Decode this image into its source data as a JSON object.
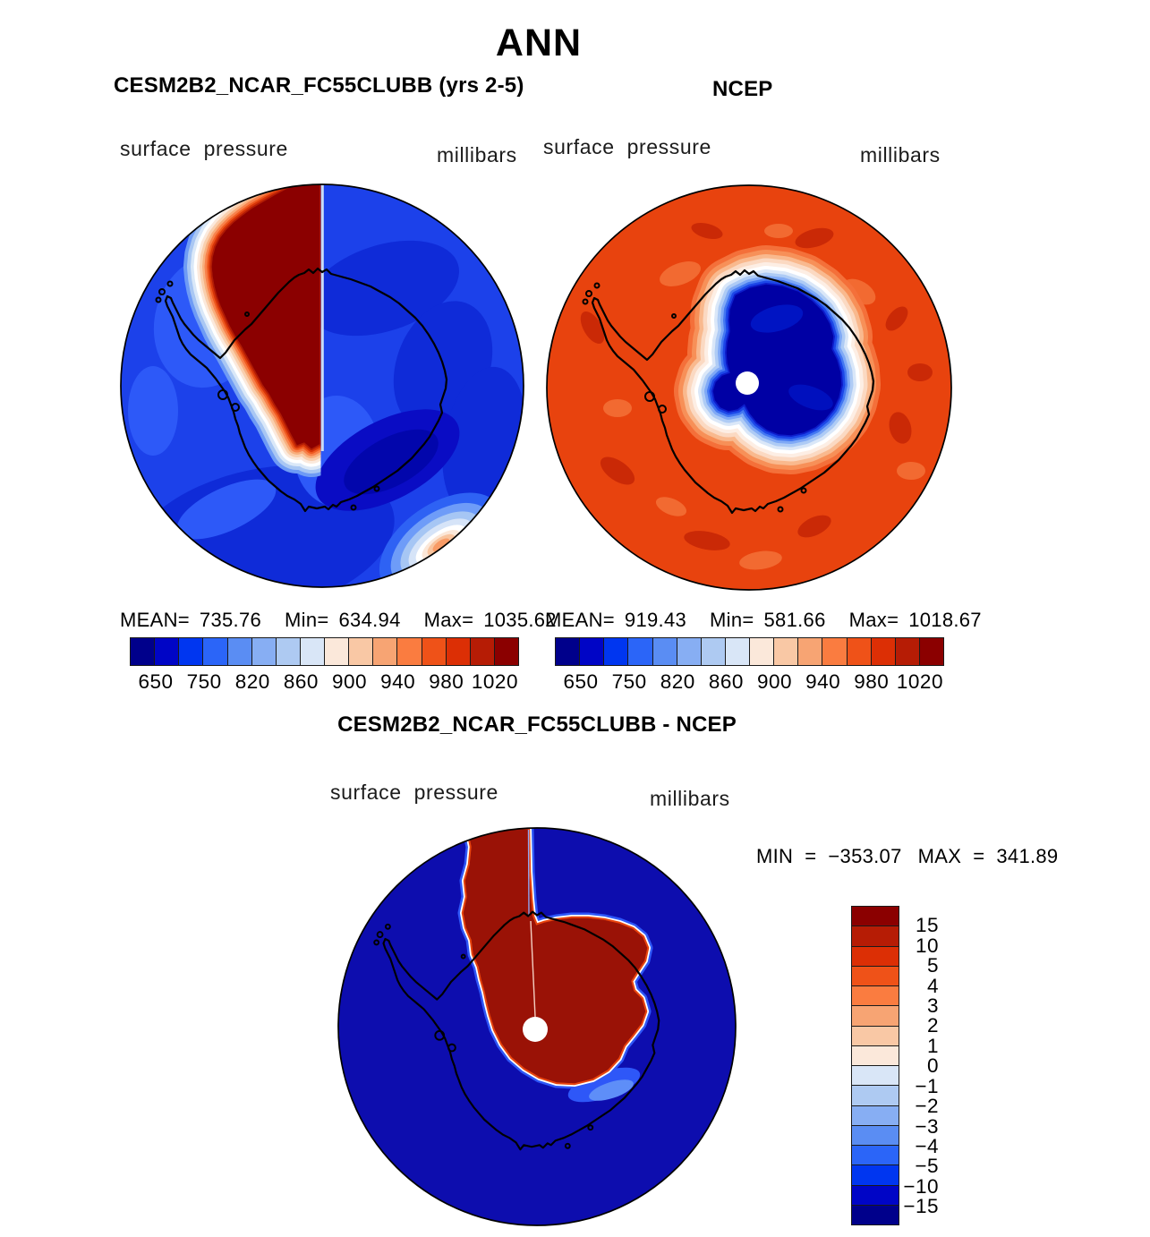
{
  "page": {
    "title": "ANN"
  },
  "panels": {
    "model": {
      "title": "CESM2B2_NCAR_FC55CLUBB (yrs 2-5)",
      "field_label": "surface pressure",
      "units_label": "millibars",
      "stats": {
        "mean_label": "MEAN=",
        "mean": "735.76",
        "min_label": "Min=",
        "min": "634.94",
        "max_label": "Max=",
        "max": "1035.62"
      }
    },
    "obs": {
      "title": "NCEP",
      "field_label": "surface pressure",
      "units_label": "millibars",
      "stats": {
        "mean_label": "MEAN=",
        "mean": "919.43",
        "min_label": "Min=",
        "min": "581.66",
        "max_label": "Max=",
        "max": "1018.67"
      }
    },
    "diff": {
      "title": "CESM2B2_NCAR_FC55CLUBB - NCEP",
      "field_label": "surface pressure",
      "units_label": "millibars",
      "stats": {
        "min_label": "MIN",
        "min_eq": "=",
        "min": "−353.07",
        "max_label": "MAX",
        "max_eq": "=",
        "max": "341.89"
      }
    }
  },
  "colorbar_horizontal": {
    "tick_labels": [
      "650",
      "750",
      "820",
      "860",
      "900",
      "940",
      "980",
      "1020"
    ],
    "colors": [
      "#00008B",
      "#0005C6",
      "#0036F0",
      "#2B65F8",
      "#5A8DF3",
      "#87AEF3",
      "#AECAF2",
      "#D9E6F7",
      "#FBE8DA",
      "#F9C8A5",
      "#F7A473",
      "#FA7C40",
      "#EF5218",
      "#DC2F05",
      "#B61C05",
      "#8B0000"
    ]
  },
  "colorbar_vertical": {
    "labels": [
      "15",
      "10",
      "5",
      "4",
      "3",
      "2",
      "1",
      "0",
      "−1",
      "−2",
      "−3",
      "−4",
      "−5",
      "−10",
      "−15"
    ],
    "colors": [
      "#8B0000",
      "#B61C05",
      "#DC2F05",
      "#EF5218",
      "#FA7C40",
      "#F7A473",
      "#F9C8A5",
      "#FBE8DA",
      "#D9E6F7",
      "#AECAF2",
      "#87AEF3",
      "#5A8DF3",
      "#2B65F8",
      "#0036F0",
      "#0005C6",
      "#00008B"
    ]
  },
  "chart_data": [
    {
      "type": "contour_map",
      "panel": "model",
      "title": "CESM2B2_NCAR_FC55CLUBB (yrs 2-5)",
      "season": "ANN",
      "variable": "surface pressure",
      "units": "millibars",
      "region": "Antarctica (south polar stereographic)",
      "mean": 735.76,
      "min": 634.94,
      "max": 1035.62,
      "contour_levels": [
        650,
        750,
        820,
        860,
        900,
        940,
        980,
        1020
      ],
      "palette": "16-step blue to red, horizontal legend"
    },
    {
      "type": "contour_map",
      "panel": "observation",
      "title": "NCEP",
      "season": "ANN",
      "variable": "surface pressure",
      "units": "millibars",
      "region": "Antarctica (south polar stereographic)",
      "mean": 919.43,
      "min": 581.66,
      "max": 1018.67,
      "contour_levels": [
        650,
        750,
        820,
        860,
        900,
        940,
        980,
        1020
      ],
      "palette": "16-step blue to red, horizontal legend"
    },
    {
      "type": "contour_map",
      "panel": "difference",
      "title": "CESM2B2_NCAR_FC55CLUBB - NCEP",
      "season": "ANN",
      "variable": "surface pressure",
      "units": "millibars",
      "region": "Antarctica (south polar stereographic)",
      "min": -353.07,
      "max": 341.89,
      "contour_levels": [
        15,
        10,
        5,
        4,
        3,
        2,
        1,
        0,
        -1,
        -2,
        -3,
        -4,
        -5,
        -10,
        -15
      ],
      "palette": "16-step red to blue, vertical legend"
    }
  ]
}
